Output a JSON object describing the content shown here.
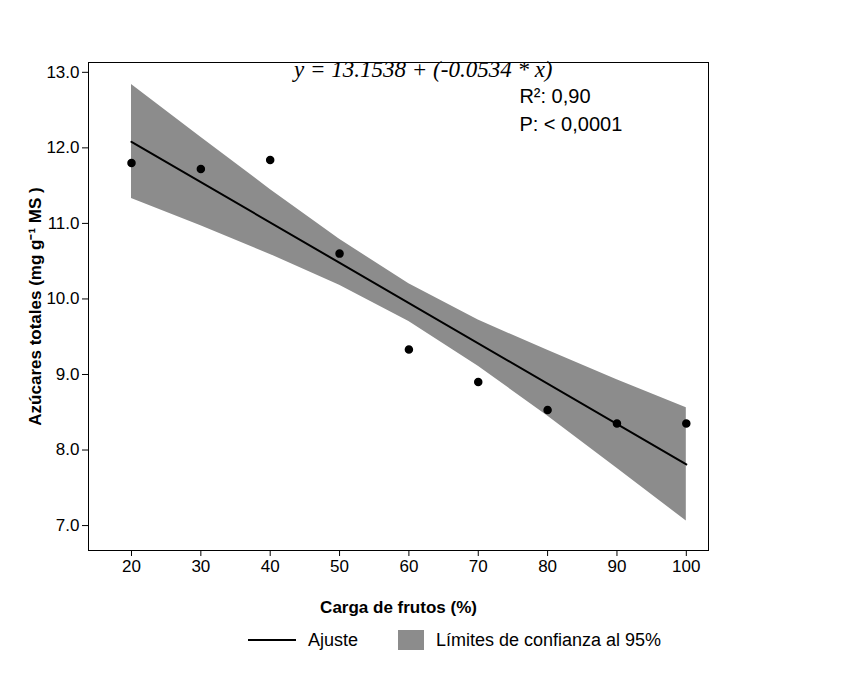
{
  "chart_data": {
    "type": "scatter",
    "x_label": "Carga de frutos (%)",
    "y_label": "Azúcares totales (mg g⁻¹ MS )",
    "x": [
      20,
      30,
      40,
      50,
      60,
      70,
      80,
      90,
      100
    ],
    "values": [
      11.8,
      11.72,
      11.84,
      10.6,
      9.33,
      8.9,
      8.53,
      8.35,
      8.35
    ],
    "color": "#000000",
    "marker": "circle",
    "fit": {
      "name": "Ajuste",
      "x": [
        20,
        100
      ],
      "values": [
        12.08,
        7.81
      ],
      "color": "#000000",
      "line_style": "solid"
    },
    "band": {
      "name": "Límites de confianza al 95%",
      "color": "#8c8c8c",
      "x": [
        20,
        30,
        40,
        50,
        60,
        70,
        80,
        90,
        100
      ],
      "lower": [
        11.33,
        10.97,
        10.59,
        10.18,
        9.7,
        9.11,
        8.45,
        7.76,
        7.06
      ],
      "upper": [
        12.84,
        12.14,
        11.45,
        10.79,
        10.2,
        9.72,
        9.32,
        8.93,
        8.56
      ]
    },
    "annotations": [
      "y = 13.1538 + (-0.0534 * x)",
      "R²: 0,90",
      "P: < 0,0001"
    ],
    "xlim": [
      13.8,
      103.2
    ],
    "ylim": [
      6.67,
      13.13
    ],
    "xticks": [
      20,
      30,
      40,
      50,
      60,
      70,
      80,
      90,
      100
    ],
    "yticks": [
      7,
      8,
      9,
      10,
      11,
      12,
      13
    ],
    "grid": false,
    "legend": "bottom"
  }
}
